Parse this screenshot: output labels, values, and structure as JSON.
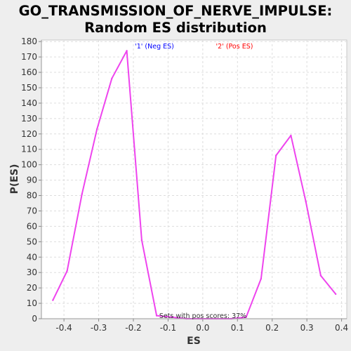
{
  "chart_data": {
    "type": "line",
    "title": "GO_TRANSMISSION_OF_NERVE_IMPULSE:",
    "subtitle": "Random ES distribution",
    "xlabel": "ES",
    "ylabel": "P(ES)",
    "xlim": [
      -0.465,
      0.415
    ],
    "ylim": [
      0,
      181
    ],
    "x_ticks": [
      -0.4,
      -0.3,
      -0.2,
      -0.1,
      0.0,
      0.1,
      0.2,
      0.3,
      0.4
    ],
    "x_tick_labels": [
      "-0.4",
      "-0.3",
      "-0.2",
      "-0.1",
      "0.0",
      "0.1",
      "0.2",
      "0.3",
      "0.4"
    ],
    "y_ticks": [
      0,
      10,
      20,
      30,
      40,
      50,
      60,
      70,
      80,
      90,
      100,
      110,
      120,
      130,
      140,
      150,
      160,
      170,
      180
    ],
    "y_tick_labels": [
      "0",
      "10",
      "20",
      "30",
      "40",
      "50",
      "60",
      "70",
      "80",
      "90",
      "100",
      "110",
      "120",
      "130",
      "140",
      "150",
      "160",
      "170",
      "180"
    ],
    "grid": true,
    "legend": [
      {
        "label": "'1' (Neg ES)",
        "color": "#0000ff"
      },
      {
        "label": "'2' (Pos ES)",
        "color": "#ff0000"
      }
    ],
    "annotation": "Sets with pos scores: 37%",
    "series_color": "#ee44ee",
    "x": [
      -0.432,
      -0.391,
      -0.348,
      -0.305,
      -0.262,
      -0.219,
      -0.176,
      -0.133,
      -0.09,
      -0.047,
      -0.004,
      0.039,
      0.082,
      0.125,
      0.168,
      0.211,
      0.254,
      0.297,
      0.34,
      0.383
    ],
    "values": [
      12,
      31,
      81,
      123,
      156,
      174,
      51,
      2,
      1,
      0,
      0,
      0,
      0,
      1,
      26,
      106,
      119,
      76,
      28,
      16
    ]
  }
}
